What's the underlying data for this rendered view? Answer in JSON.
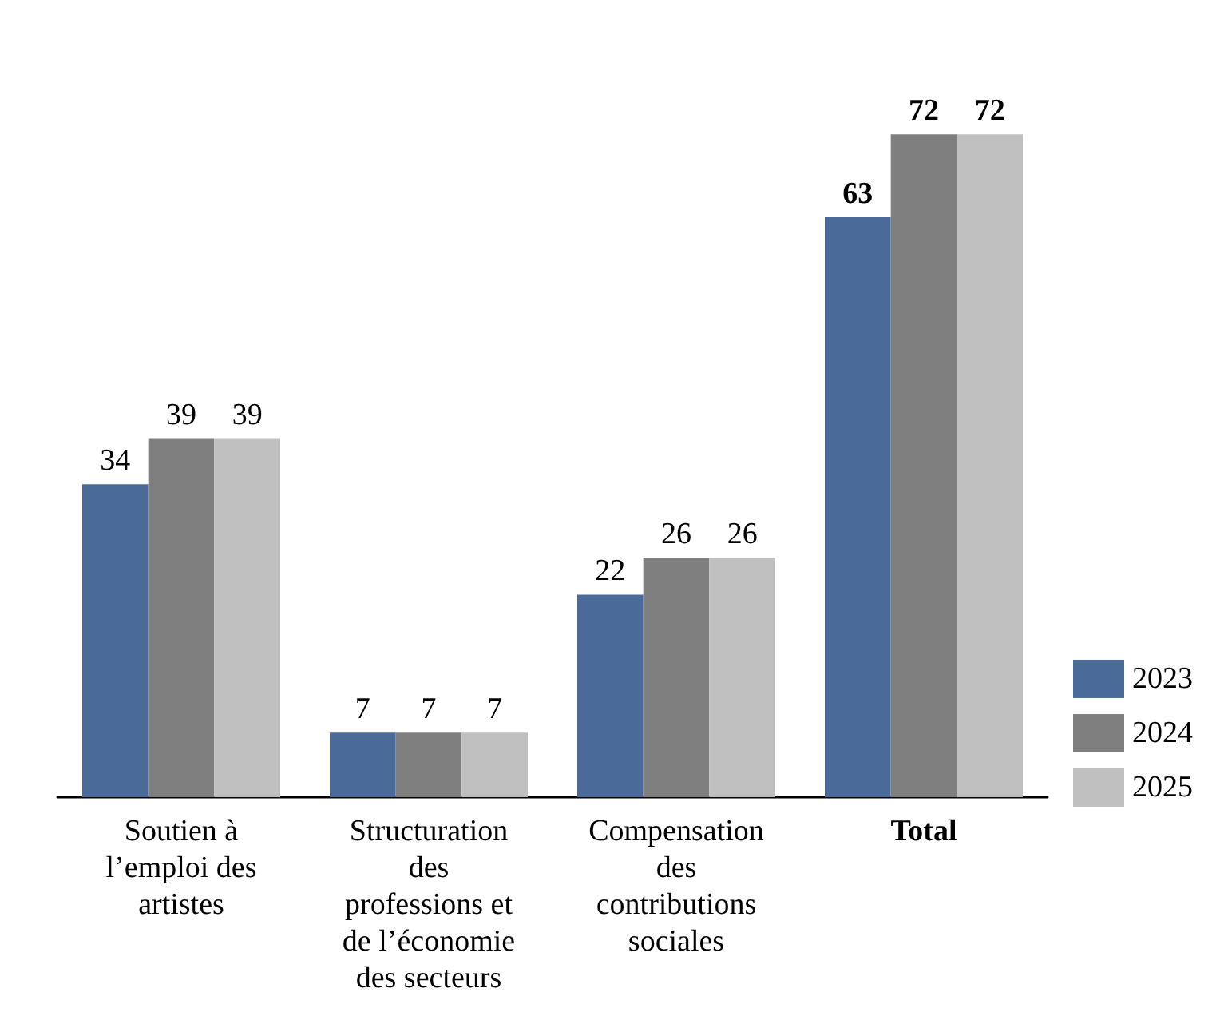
{
  "chart_data": {
    "type": "bar",
    "categories": [
      "Soutien à l’emploi des artistes",
      "Structuration des professions et de l’économie des secteurs",
      "Compensation des contributions sociales",
      "Total"
    ],
    "series": [
      {
        "name": "2023",
        "color": "#4a6b9a",
        "values": [
          34,
          7,
          22,
          63
        ]
      },
      {
        "name": "2024",
        "color": "#7f7f7f",
        "values": [
          39,
          7,
          26,
          72
        ]
      },
      {
        "name": "2025",
        "color": "#c0c0c0",
        "values": [
          39,
          7,
          26,
          72
        ]
      }
    ],
    "data_labels": true,
    "legend": "bottom right",
    "grid": false
  }
}
